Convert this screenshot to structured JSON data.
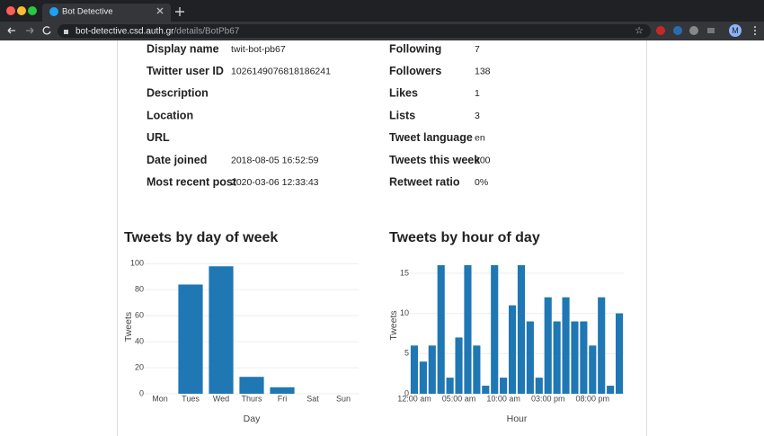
{
  "browser": {
    "tab_title": "Bot Detective",
    "url_host": "bot-detective.csd.auth.gr",
    "url_path": "/details/BotPb67",
    "avatar": "M"
  },
  "profile": {
    "left": [
      {
        "label": "Display name",
        "value": "twit-bot-pb67"
      },
      {
        "label": "Twitter user ID",
        "value": "1026149076818186241"
      },
      {
        "label": "Description",
        "value": null
      },
      {
        "label": "Location",
        "value": null
      },
      {
        "label": "URL",
        "value": null
      },
      {
        "label": "Date joined",
        "value": "2018-08-05 16:52:59"
      },
      {
        "label": "Most recent post",
        "value": "2020-03-06 12:33:43"
      }
    ],
    "right": [
      {
        "label": "Following",
        "value": "7"
      },
      {
        "label": "Followers",
        "value": "138"
      },
      {
        "label": "Likes",
        "value": "1"
      },
      {
        "label": "Lists",
        "value": "3"
      },
      {
        "label": "Tweet language",
        "value": "en"
      },
      {
        "label": "Tweets this week",
        "value": "200"
      },
      {
        "label": "Retweet ratio",
        "value": "0%"
      }
    ]
  },
  "chart_data": [
    {
      "type": "bar",
      "title": "Tweets by day of week",
      "x_label": "Day",
      "y_label": "Tweets",
      "categories": [
        "Mon",
        "Tues",
        "Wed",
        "Thurs",
        "Fri",
        "Sat",
        "Sun"
      ],
      "values": [
        0,
        84,
        98,
        13,
        5,
        0,
        0
      ],
      "color": "#1f77b4",
      "ylim": [
        0,
        103
      ],
      "yticks": [
        0,
        20,
        40,
        60,
        80,
        100
      ],
      "grid": true
    },
    {
      "type": "bar",
      "title": "Tweets by hour of day",
      "x_label": "Hour",
      "y_label": "Tweets",
      "categories": [
        "12:00 am",
        null,
        null,
        null,
        null,
        "05:00 am",
        null,
        null,
        null,
        null,
        "10:00 am",
        null,
        null,
        null,
        null,
        "03:00 pm",
        null,
        null,
        null,
        null,
        "08:00 pm",
        null,
        null,
        null
      ],
      "values": [
        6,
        4,
        6,
        16,
        2,
        7,
        16,
        6,
        1,
        16,
        2,
        11,
        16,
        9,
        2,
        12,
        9,
        12,
        9,
        9,
        6,
        12,
        1,
        10
      ],
      "color": "#1f77b4",
      "ylim": [
        0,
        17
      ],
      "yticks": [
        0,
        5,
        10,
        15
      ],
      "grid": true
    }
  ]
}
